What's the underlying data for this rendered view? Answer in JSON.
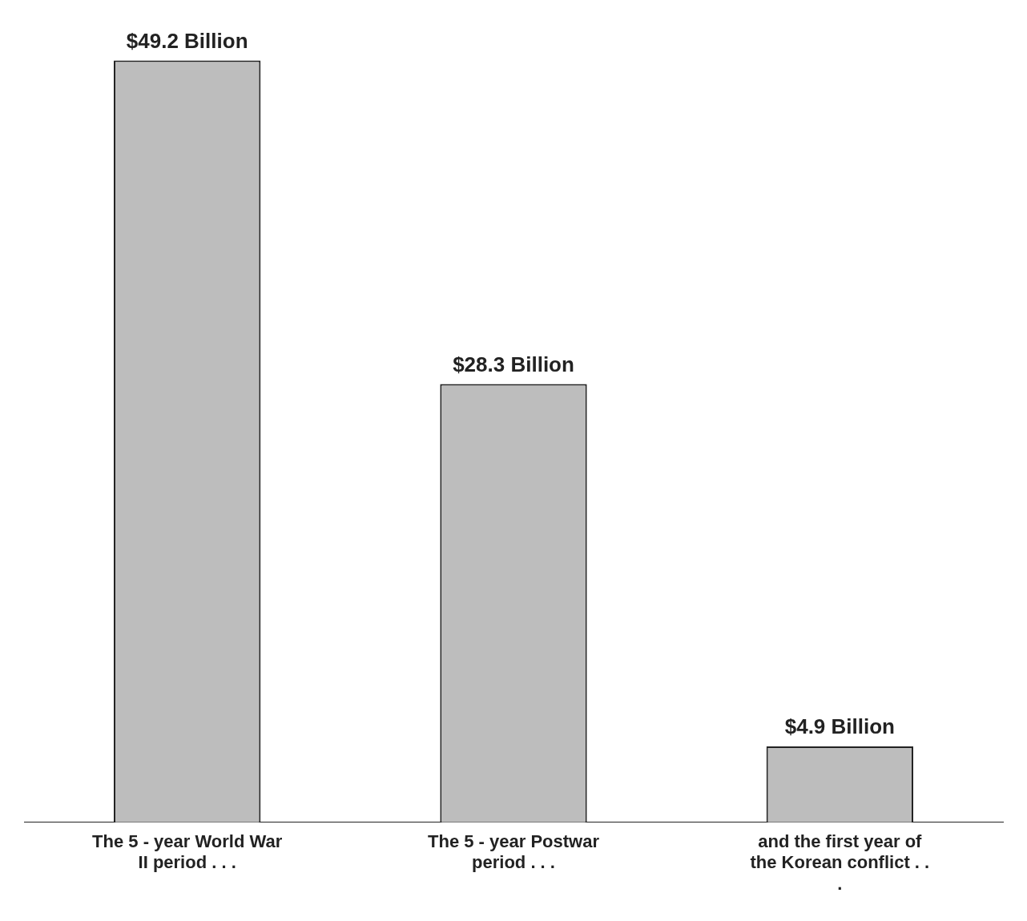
{
  "chart_data": {
    "type": "bar",
    "categories": [
      "The 5 - year World War II period . . .",
      "The 5 - year Postwar period . . .",
      "and the first year of the Korean conflict . . ."
    ],
    "values": [
      49.2,
      28.3,
      4.9
    ],
    "value_labels": [
      "$49.2 Billion",
      "$28.3 Billion",
      "$4.9 Billion"
    ],
    "color": "#bdbdbd",
    "grid": false,
    "legend": false
  }
}
